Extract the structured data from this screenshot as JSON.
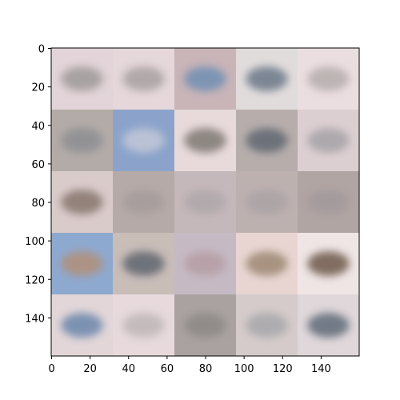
{
  "chart_data": {
    "type": "heatmap",
    "title": "",
    "xlabel": "",
    "ylabel": "",
    "xlim": [
      0,
      160
    ],
    "ylim": [
      160,
      0
    ],
    "grid": false,
    "x_ticks": [
      0,
      20,
      40,
      60,
      80,
      100,
      120,
      140
    ],
    "y_ticks": [
      0,
      20,
      40,
      60,
      80,
      100,
      120,
      140
    ],
    "x_tick_labels": [
      "0",
      "20",
      "40",
      "60",
      "80",
      "100",
      "120",
      "140"
    ],
    "y_tick_labels": [
      "0",
      "20",
      "40",
      "60",
      "80",
      "100",
      "120",
      "140"
    ],
    "tile_size": 32,
    "tiles": [
      [
        {
          "bg": "#e2d4d8",
          "blob": "#9f9a9a"
        },
        {
          "bg": "#e5d7da",
          "blob": "#a8a1a1"
        },
        {
          "bg": "#c9b4b8",
          "blob": "#6f8fb3"
        },
        {
          "bg": "#e1dcdc",
          "blob": "#6b7888"
        },
        {
          "bg": "#ebdee1",
          "blob": "#b5adad"
        }
      ],
      [
        {
          "bg": "#b3aba7",
          "blob": "#8d8e93"
        },
        {
          "bg": "#8ba3ca",
          "blob": "#c2c8d8"
        },
        {
          "bg": "#e8dadb",
          "blob": "#7e7872"
        },
        {
          "bg": "#b7aeac",
          "blob": "#606872"
        },
        {
          "bg": "#dccfd2",
          "blob": "#a6a3a6"
        }
      ],
      [
        {
          "bg": "#dacbcb",
          "blob": "#86766d"
        },
        {
          "bg": "#b6aaa8",
          "blob": "#a59d9b"
        },
        {
          "bg": "#c5b8ba",
          "blob": "#aea8ab"
        },
        {
          "bg": "#bdb1b0",
          "blob": "#aaa3a5"
        },
        {
          "bg": "#b1a5a3",
          "blob": "#a39a9b"
        }
      ],
      [
        {
          "bg": "#8ea9cf",
          "blob": "#b38f78"
        },
        {
          "bg": "#c9bdb8",
          "blob": "#5f6670"
        },
        {
          "bg": "#c5bac4",
          "blob": "#b69da4"
        },
        {
          "bg": "#e8d5d2",
          "blob": "#9c8872"
        },
        {
          "bg": "#efe5e5",
          "blob": "#6d5848"
        }
      ],
      [
        {
          "bg": "#e2d6d8",
          "blob": "#6b86ab"
        },
        {
          "bg": "#e7d9dc",
          "blob": "#bfb7b7"
        },
        {
          "bg": "#aaa2a0",
          "blob": "#8d8987"
        },
        {
          "bg": "#d5cbca",
          "blob": "#a7a7aa"
        },
        {
          "bg": "#dfd7d9",
          "blob": "#5f6b78"
        }
      ]
    ]
  }
}
